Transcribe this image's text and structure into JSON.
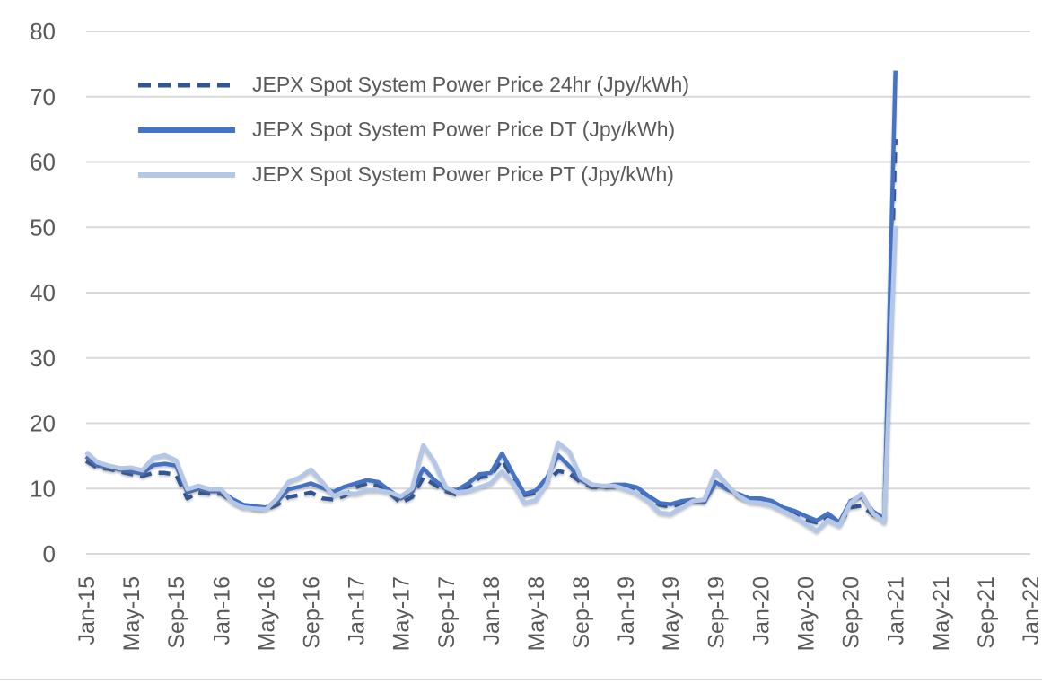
{
  "chart_data": {
    "type": "line",
    "title": "",
    "xlabel": "",
    "ylabel": "",
    "ylim": [
      0,
      80
    ],
    "y_ticks": [
      0,
      10,
      20,
      30,
      40,
      50,
      60,
      70,
      80
    ],
    "grid": "horizontal",
    "legend_position": "top-left",
    "axis_text_color": "#595959",
    "gridline_color": "#D9D9D9",
    "x_tick_labels": [
      "Jan-15",
      "May-15",
      "Sep-15",
      "Jan-16",
      "May-16",
      "Sep-16",
      "Jan-17",
      "May-17",
      "Sep-17",
      "Jan-18",
      "May-18",
      "Sep-18",
      "Jan-19",
      "May-19",
      "Sep-19",
      "Jan-20",
      "May-20",
      "Sep-20",
      "Jan-21",
      "May-21",
      "Sep-21",
      "Jan-22"
    ],
    "x_months_start": "Jan-15",
    "x_months_end_axis": "Jan-22",
    "data_months_per_point": 1,
    "series": [
      {
        "name": "JEPX Spot System Power Price 24hr (Jpy/kWh)",
        "style": "dashed",
        "color": "#2F5597",
        "values": [
          14.2,
          13.2,
          13.0,
          12.6,
          12.2,
          11.9,
          12.4,
          12.4,
          12.1,
          8.5,
          9.4,
          9.2,
          9.2,
          8.1,
          7.3,
          7.0,
          6.8,
          7.5,
          8.7,
          9.0,
          9.4,
          8.5,
          8.3,
          8.9,
          10.2,
          10.8,
          10.5,
          9.3,
          7.8,
          8.7,
          11.7,
          10.6,
          9.6,
          9.0,
          10.2,
          11.7,
          12.0,
          14.4,
          11.5,
          9.0,
          9.3,
          11.0,
          12.7,
          12.3,
          11.0,
          10.2,
          10.2,
          10.3,
          10.3,
          9.9,
          8.6,
          7.5,
          7.2,
          7.8,
          8.0,
          8.1,
          10.8,
          10.3,
          8.8,
          8.2,
          8.1,
          7.8,
          6.9,
          6.2,
          5.2,
          4.8,
          5.6,
          4.5,
          7.1,
          7.4,
          6.0,
          5.2,
          63.5
        ]
      },
      {
        "name": "JEPX Spot System Power Price DT (Jpy/kWh)",
        "style": "solid",
        "color": "#4472C4",
        "values": [
          14.9,
          13.5,
          13.3,
          12.9,
          12.6,
          12.3,
          13.6,
          13.8,
          13.5,
          9.4,
          10.0,
          9.6,
          9.6,
          8.4,
          7.5,
          7.3,
          7.1,
          8.0,
          9.9,
          10.3,
          10.8,
          10.1,
          9.5,
          10.3,
          10.8,
          11.3,
          11.0,
          9.7,
          8.5,
          9.5,
          13.1,
          11.3,
          9.9,
          9.8,
          10.8,
          12.2,
          12.4,
          15.4,
          12.2,
          9.2,
          9.7,
          11.7,
          15.1,
          13.4,
          11.3,
          10.4,
          10.3,
          10.6,
          10.6,
          10.2,
          8.9,
          7.8,
          7.6,
          8.1,
          8.3,
          7.9,
          11.0,
          9.9,
          9.2,
          8.5,
          8.5,
          8.1,
          7.1,
          6.6,
          5.8,
          5.1,
          6.2,
          4.8,
          8.1,
          8.8,
          6.5,
          5.4,
          74.0
        ]
      },
      {
        "name": "JEPX Spot System Power Price PT (Jpy/kWh)",
        "style": "solid",
        "color": "#B4C7E7",
        "values": [
          15.6,
          14.0,
          13.5,
          13.1,
          13.2,
          12.8,
          14.7,
          15.1,
          14.3,
          9.9,
          10.4,
          9.9,
          9.9,
          7.9,
          7.1,
          6.9,
          6.8,
          8.5,
          11.0,
          11.7,
          12.9,
          11.0,
          8.9,
          9.3,
          9.2,
          9.7,
          9.7,
          9.4,
          8.8,
          10.0,
          16.6,
          14.0,
          10.2,
          9.4,
          9.6,
          10.2,
          10.8,
          12.6,
          10.8,
          7.8,
          8.2,
          10.8,
          17.0,
          15.6,
          11.7,
          10.6,
          10.4,
          10.4,
          9.9,
          9.2,
          8.1,
          6.3,
          6.1,
          7.1,
          8.1,
          8.3,
          12.6,
          10.6,
          8.9,
          7.9,
          7.8,
          7.4,
          6.5,
          5.7,
          4.6,
          3.5,
          5.2,
          4.3,
          7.8,
          9.2,
          6.2,
          4.8,
          50.2
        ]
      }
    ]
  }
}
